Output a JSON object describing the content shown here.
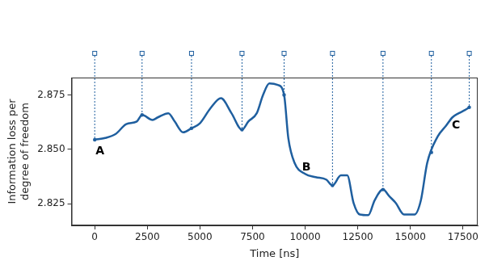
{
  "chart_data": {
    "type": "line",
    "x_label": "Time [ns]",
    "y_label": "Information loss per degree of freedom",
    "color": "#1f5f9f",
    "grid": false,
    "x": [
      0,
      500,
      1000,
      1500,
      2000,
      2250,
      2750,
      3000,
      3500,
      3800,
      4200,
      4600,
      5000,
      5500,
      6000,
      6500,
      7000,
      7300,
      7700,
      8000,
      8300,
      8700,
      9000,
      9200,
      9500,
      10000,
      10500,
      11000,
      11300,
      11700,
      12000,
      12300,
      12600,
      13000,
      13300,
      13700,
      14000,
      14300,
      14700,
      15200,
      15500,
      15800,
      16300,
      16700,
      17000,
      17300,
      17600,
      17800
    ],
    "values": [
      2.8544,
      2.8552,
      2.8571,
      2.8616,
      2.8628,
      2.8658,
      2.8635,
      2.8647,
      2.8666,
      2.8628,
      2.8578,
      2.8597,
      2.862,
      2.8689,
      2.8735,
      2.8666,
      2.859,
      2.8628,
      2.8666,
      2.875,
      2.8803,
      2.8796,
      2.875,
      2.8552,
      2.8437,
      2.8387,
      2.8372,
      2.8361,
      2.8334,
      2.838,
      2.838,
      2.8254,
      2.82,
      2.8197,
      2.8265,
      2.8315,
      2.8284,
      2.8254,
      2.82,
      2.82,
      2.8265,
      2.8437,
      2.8559,
      2.8609,
      2.8647,
      2.8666,
      2.8681,
      2.8693
    ],
    "xlim": [
      -1100,
      18200
    ],
    "xticks": [
      0,
      2500,
      5000,
      7500,
      10000,
      12500,
      15000,
      17500
    ],
    "ylim": [
      2.815,
      2.883
    ],
    "yticks": [
      2.825,
      {
        "value": 2.85,
        "label": "2.850"
      },
      2.875
    ],
    "snapshots": [
      0,
      2250,
      4600,
      7000,
      9000,
      11300,
      13700,
      16000,
      17800
    ],
    "annotations": [
      {
        "text": "A",
        "x": 250,
        "y": 2.849
      },
      {
        "text": "B",
        "x": 10060,
        "y": 2.8418
      },
      {
        "text": "C",
        "x": 17170,
        "y": 2.861
      }
    ]
  }
}
